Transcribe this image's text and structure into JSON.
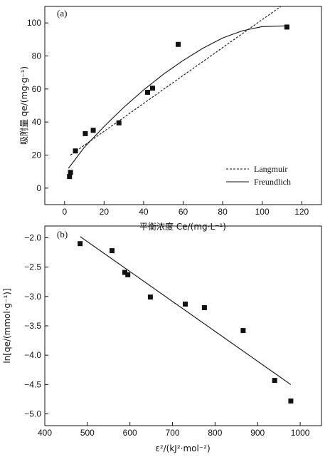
{
  "chart_data": [
    {
      "type": "scatter",
      "panel_label": "(a)",
      "xlabel": "平衡浓度 Ce/(mg·L⁻¹)",
      "ylabel": "吸附量 qe/(mg·g⁻¹)",
      "xlim": [
        -10,
        130
      ],
      "ylim": [
        -10,
        110
      ],
      "xticks": [
        0,
        20,
        40,
        60,
        80,
        100,
        120
      ],
      "yticks": [
        0,
        20,
        40,
        60,
        80,
        100
      ],
      "points": [
        {
          "x": 2.5,
          "y": 7
        },
        {
          "x": 3,
          "y": 9.5
        },
        {
          "x": 5.5,
          "y": 22.5
        },
        {
          "x": 10.5,
          "y": 33
        },
        {
          "x": 14.5,
          "y": 35
        },
        {
          "x": 27.5,
          "y": 39.5
        },
        {
          "x": 42,
          "y": 58
        },
        {
          "x": 44.5,
          "y": 60.5
        },
        {
          "x": 57.5,
          "y": 87
        },
        {
          "x": 112.5,
          "y": 97.5
        }
      ],
      "series": [
        {
          "name": "Langmuir",
          "style": "dashed",
          "x": [
            3,
            109.5
          ],
          "y": [
            20,
            110
          ]
        },
        {
          "name": "Freundlich",
          "style": "solid",
          "x": [
            2,
            10,
            20,
            30,
            40,
            50,
            60,
            70,
            80,
            90,
            100,
            112
          ],
          "y": [
            12,
            24.7,
            37.3,
            48.9,
            59.4,
            68.9,
            77.3,
            84.7,
            90.9,
            95.3,
            97.8,
            98.2
          ]
        }
      ],
      "legend": {
        "position": "bottom-right",
        "entries": [
          "Langmuir",
          "Freundlich"
        ]
      }
    },
    {
      "type": "scatter",
      "panel_label": "(b)",
      "xlabel": "ε²/(kJ²·mol⁻²)",
      "ylabel": "ln[qe/(mmol·g⁻¹)]",
      "xlim": [
        400,
        1050
      ],
      "ylim": [
        -5.2,
        -1.8
      ],
      "xticks": [
        400,
        500,
        600,
        700,
        800,
        900,
        1000
      ],
      "yticks": [
        -2.0,
        -2.5,
        -3.0,
        -3.5,
        -4.0,
        -4.5,
        -5.0
      ],
      "ytick_labels": [
        "−2.0",
        "−2.5",
        "−3.0",
        "−3.5",
        "−4.0",
        "−4.5",
        "−5.0"
      ],
      "points": [
        {
          "x": 483,
          "y": -2.1
        },
        {
          "x": 558,
          "y": -2.22
        },
        {
          "x": 588,
          "y": -2.59
        },
        {
          "x": 595,
          "y": -2.63
        },
        {
          "x": 648,
          "y": -3.01
        },
        {
          "x": 730,
          "y": -3.13
        },
        {
          "x": 775,
          "y": -3.19
        },
        {
          "x": 866,
          "y": -3.58
        },
        {
          "x": 940,
          "y": -4.43
        },
        {
          "x": 978,
          "y": -4.78
        }
      ],
      "series": [
        {
          "name": "",
          "style": "solid",
          "x": [
            483,
            978
          ],
          "y": [
            -1.98,
            -4.5
          ]
        }
      ]
    }
  ]
}
